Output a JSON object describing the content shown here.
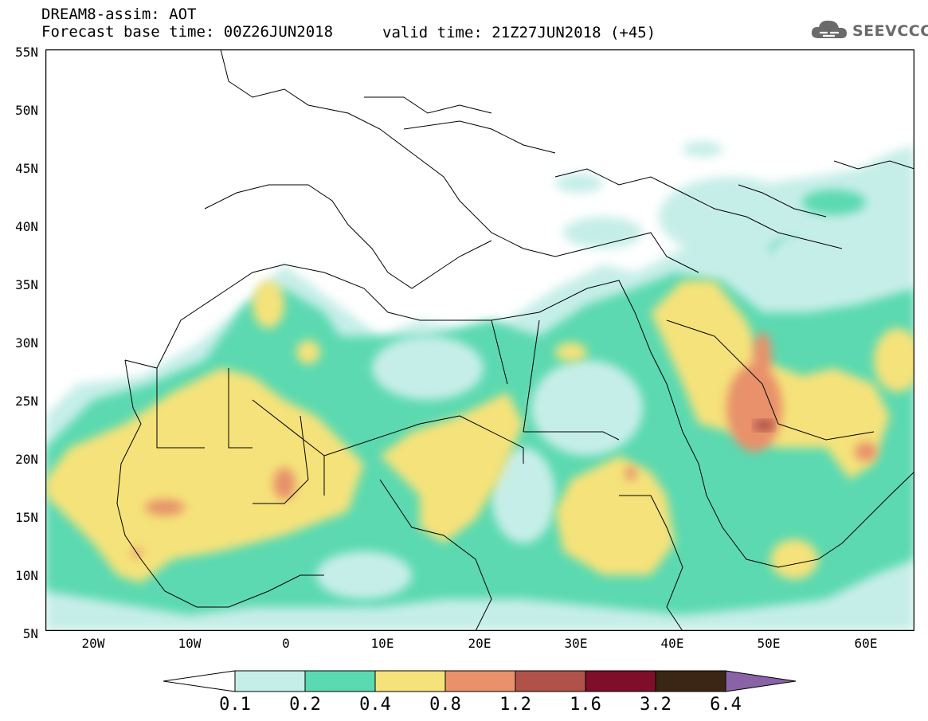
{
  "header": {
    "title": "DREAM8-assim: AOT",
    "base_time": "Forecast base time: 00Z26JUN2018",
    "valid_time": "valid time: 21Z27JUN2018 (+45)"
  },
  "logo": {
    "text": "SEEVCCC",
    "icon": "cloud-icon",
    "color": "#6a6a6a"
  },
  "map": {
    "variable": "AOT",
    "extent": {
      "lon_min": -25,
      "lon_max": 65,
      "lat_min": 5,
      "lat_max": 55
    },
    "lat_labels": [
      "5N",
      "10N",
      "15N",
      "20N",
      "25N",
      "30N",
      "35N",
      "40N",
      "45N",
      "50N",
      "55N"
    ],
    "lon_labels": [
      "20W",
      "10W",
      "0",
      "10E",
      "20E",
      "30E",
      "40E",
      "50E",
      "60E"
    ],
    "background_color": "#ffffff",
    "border_color": "#000000"
  },
  "colorbar": {
    "labels": [
      "0.1",
      "0.2",
      "0.4",
      "0.8",
      "1.2",
      "1.6",
      "3.2",
      "6.4"
    ],
    "colors": [
      "#ffffff",
      "#c6eee8",
      "#5bd9b0",
      "#f5e27a",
      "#e8916a",
      "#b1524a",
      "#7f0e2a",
      "#3b2616",
      "#8a63a6"
    ]
  }
}
